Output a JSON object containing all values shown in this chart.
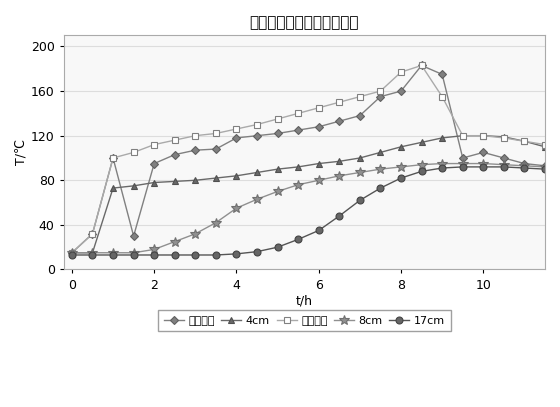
{
  "title": "花旗松不同位置的温度变化",
  "xlabel": "t/h",
  "ylabel": "T/℃",
  "xlim": [
    -0.2,
    11.5
  ],
  "ylim": [
    0,
    210
  ],
  "xticks": [
    0,
    2,
    4,
    6,
    8,
    10
  ],
  "yticks": [
    0,
    40,
    80,
    120,
    160,
    200
  ],
  "series": {
    "环境温度": {
      "x": [
        0,
        0.5,
        1.0,
        1.5,
        2.0,
        2.5,
        3.0,
        3.5,
        4.0,
        4.5,
        5.0,
        5.5,
        6.0,
        6.5,
        7.0,
        7.5,
        8.0,
        8.5,
        9.0,
        9.5,
        10.0,
        10.5,
        11.0,
        11.5
      ],
      "y": [
        15,
        32,
        100,
        30,
        95,
        103,
        107,
        108,
        118,
        120,
        122,
        125,
        128,
        133,
        138,
        155,
        160,
        183,
        175,
        100,
        105,
        100,
        95,
        93
      ],
      "color": "#808080",
      "marker": "D",
      "markersize": 4,
      "label": "环境温度"
    },
    "4cm": {
      "x": [
        0,
        0.5,
        1.0,
        1.5,
        2.0,
        2.5,
        3.0,
        3.5,
        4.0,
        4.5,
        5.0,
        5.5,
        6.0,
        6.5,
        7.0,
        7.5,
        8.0,
        8.5,
        9.0,
        9.5,
        10.0,
        10.5,
        11.0,
        11.5
      ],
      "y": [
        15,
        15,
        73,
        75,
        78,
        79,
        80,
        82,
        84,
        87,
        90,
        92,
        95,
        97,
        100,
        105,
        110,
        114,
        118,
        120,
        120,
        119,
        115,
        110
      ],
      "color": "#696969",
      "marker": "^",
      "markersize": 5,
      "label": "4cm"
    },
    "试材表面": {
      "x": [
        0,
        0.5,
        1.0,
        1.5,
        2.0,
        2.5,
        3.0,
        3.5,
        4.0,
        4.5,
        5.0,
        5.5,
        6.0,
        6.5,
        7.0,
        7.5,
        8.0,
        8.5,
        9.0,
        9.5,
        10.0,
        10.5,
        11.0,
        11.5
      ],
      "y": [
        15,
        32,
        100,
        105,
        112,
        116,
        120,
        122,
        126,
        130,
        135,
        140,
        145,
        150,
        155,
        160,
        177,
        183,
        155,
        120,
        120,
        118,
        115,
        112
      ],
      "color": "#aaaaaa",
      "marker": "s",
      "markersize": 4,
      "label": "试材表面"
    },
    "8cm": {
      "x": [
        0,
        0.5,
        1.0,
        1.5,
        2.0,
        2.5,
        3.0,
        3.5,
        4.0,
        4.5,
        5.0,
        5.5,
        6.0,
        6.5,
        7.0,
        7.5,
        8.0,
        8.5,
        9.0,
        9.5,
        10.0,
        10.5,
        11.0,
        11.5
      ],
      "y": [
        15,
        15,
        15,
        15,
        18,
        25,
        32,
        42,
        55,
        63,
        70,
        76,
        80,
        84,
        87,
        90,
        92,
        94,
        95,
        95,
        95,
        94,
        93,
        92
      ],
      "color": "#909090",
      "marker": "*",
      "markersize": 7,
      "label": "8cm"
    },
    "17cm": {
      "x": [
        0,
        0.5,
        1.0,
        1.5,
        2.0,
        2.5,
        3.0,
        3.5,
        4.0,
        4.5,
        5.0,
        5.5,
        6.0,
        6.5,
        7.0,
        7.5,
        8.0,
        8.5,
        9.0,
        9.5,
        10.0,
        10.5,
        11.0,
        11.5
      ],
      "y": [
        13,
        13,
        13,
        13,
        13,
        13,
        13,
        13,
        14,
        16,
        20,
        27,
        35,
        48,
        62,
        73,
        82,
        88,
        91,
        92,
        92,
        92,
        91,
        90
      ],
      "color": "#555555",
      "marker": "o",
      "markersize": 5,
      "label": "17cm"
    }
  },
  "background_color": "#ffffff",
  "plot_bg_color": "#f8f8f8",
  "grid_color": "#dddddd",
  "legend_ncol": 5
}
